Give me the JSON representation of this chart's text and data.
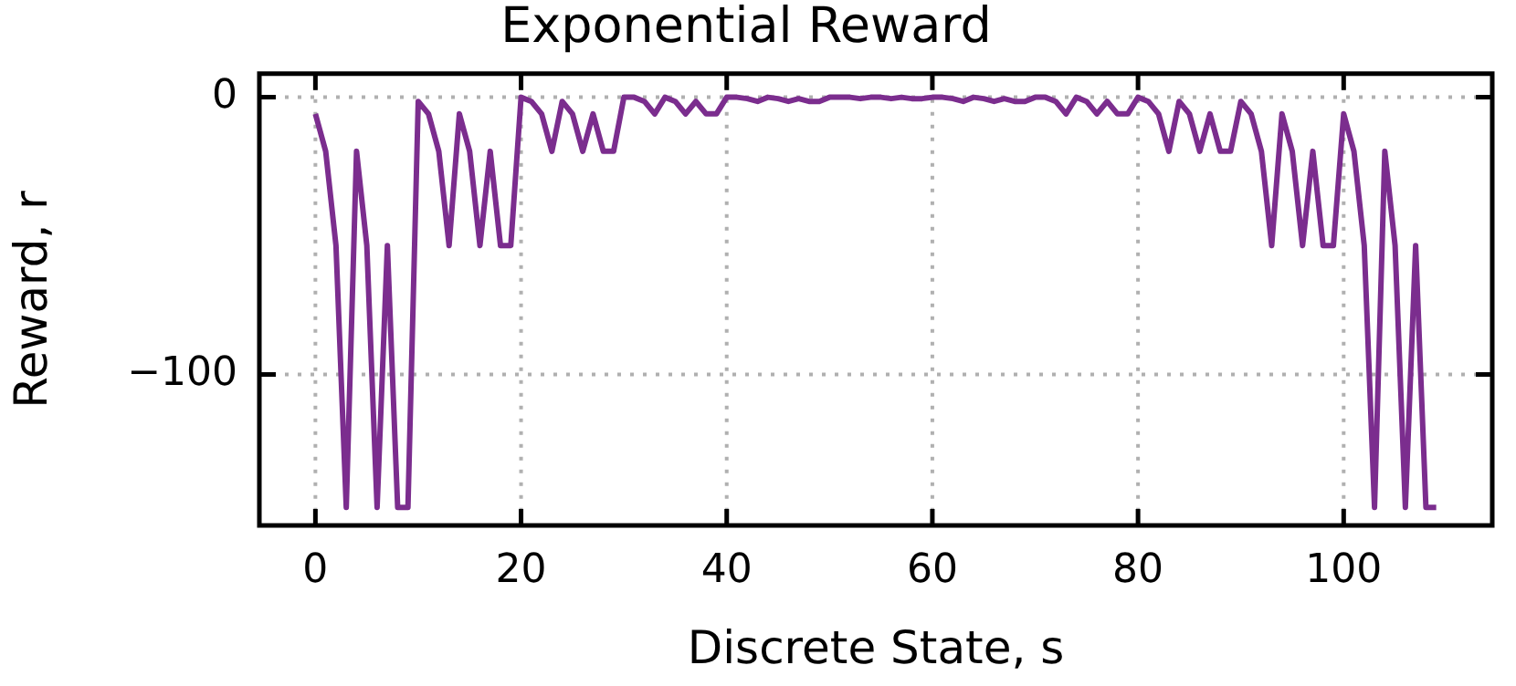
{
  "chart_data": {
    "type": "line",
    "title": "Exponential Reward",
    "xlabel": "Discrete State, s",
    "ylabel": "Reward, r",
    "x": [
      0,
      1,
      2,
      3,
      4,
      5,
      6,
      7,
      8,
      9,
      10,
      11,
      12,
      13,
      14,
      15,
      16,
      17,
      18,
      19,
      20,
      21,
      22,
      23,
      24,
      25,
      26,
      27,
      28,
      29,
      30,
      31,
      32,
      33,
      34,
      35,
      36,
      37,
      38,
      39,
      40,
      41,
      42,
      43,
      44,
      45,
      46,
      47,
      48,
      49,
      50,
      51,
      52,
      53,
      54,
      55,
      56,
      57,
      58,
      59,
      60,
      61,
      62,
      63,
      64,
      65,
      66,
      67,
      68,
      69,
      70,
      71,
      72,
      73,
      74,
      75,
      76,
      77,
      78,
      79,
      80,
      81,
      82,
      83,
      84,
      85,
      86,
      87,
      88,
      89,
      90,
      91,
      92,
      93,
      94,
      95,
      96,
      97,
      98,
      99,
      100,
      101,
      102,
      103,
      104,
      105,
      106,
      107,
      108,
      109
    ],
    "series": [
      {
        "color": "#7b2d8e",
        "values": [
          -6,
          -19.5,
          -53.5,
          -148,
          -19.5,
          -53.5,
          -148,
          -53.5,
          -148,
          -148,
          -1.5,
          -6,
          -19.5,
          -53.5,
          -6,
          -19.5,
          -53.5,
          -19.5,
          -53.5,
          -53.5,
          0,
          -1.5,
          -6,
          -19.5,
          -1.5,
          -6,
          -19.5,
          -6,
          -19.5,
          -19.5,
          0,
          0,
          -1.5,
          -6,
          0,
          -1.5,
          -6,
          -1.5,
          -6,
          -6,
          0,
          0,
          -0.5,
          -1.5,
          0,
          -0.5,
          -1.5,
          -0.5,
          -1.5,
          -1.5,
          0,
          0,
          0,
          -0.5,
          0,
          0,
          -0.5,
          0,
          -0.5,
          -0.5,
          0,
          0,
          -0.5,
          -1.5,
          0,
          -0.5,
          -1.5,
          -0.5,
          -1.5,
          -1.5,
          0,
          0,
          -1.5,
          -6,
          0,
          -1.5,
          -6,
          -1.5,
          -6,
          -6,
          0,
          -1.5,
          -6,
          -19.5,
          -1.5,
          -6,
          -19.5,
          -6,
          -19.5,
          -19.5,
          -1.5,
          -6,
          -19.5,
          -53.5,
          -6,
          -19.5,
          -53.5,
          -19.5,
          -53.5,
          -53.5,
          -6,
          -19.5,
          -53.5,
          -148,
          -19.5,
          -53.5,
          -148,
          -53.5,
          -148,
          -148
        ]
      }
    ],
    "xlim": [
      -5.45,
      114.45
    ],
    "ylim": [
      -154.5,
      8.5
    ],
    "xticks": [
      0,
      20,
      40,
      60,
      80,
      100
    ],
    "yticks": [
      -100,
      0
    ],
    "grid": true,
    "marker": "none",
    "line_style": "solid",
    "legend": false
  }
}
